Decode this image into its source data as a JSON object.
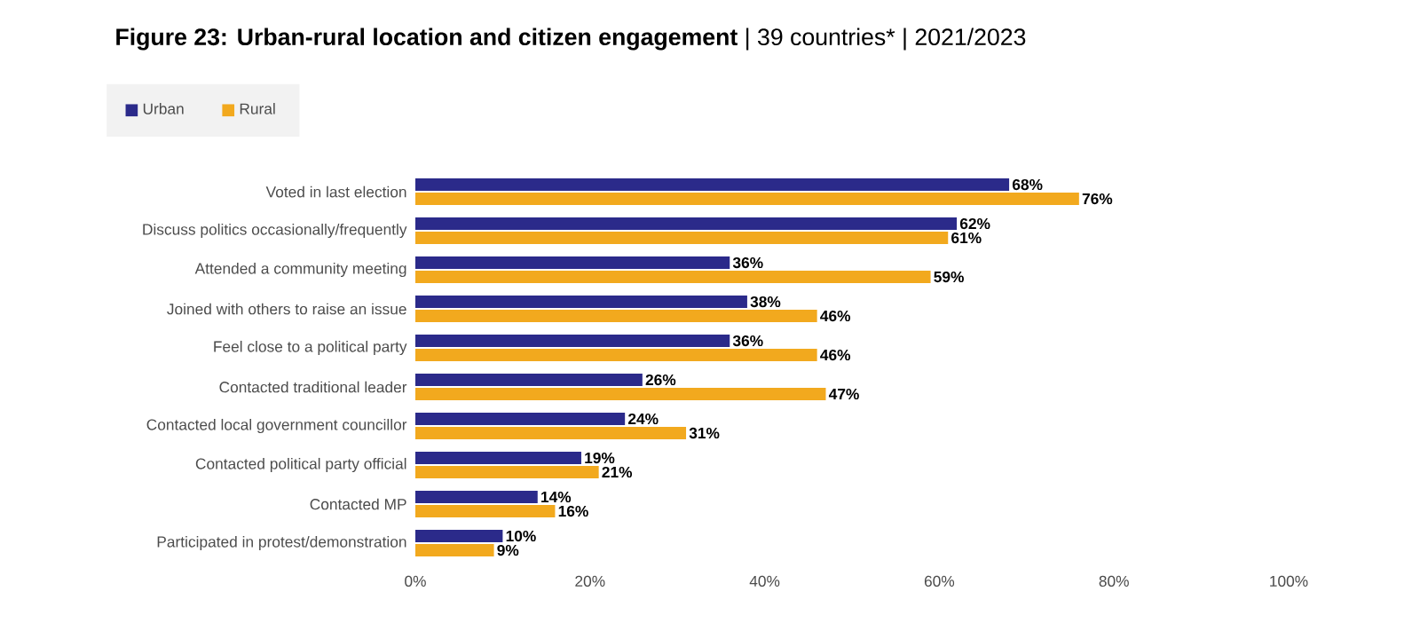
{
  "chart_data": {
    "type": "bar",
    "orientation": "horizontal",
    "title": "**Figure 23: Urban-rural location and citizen engagement** | 39 countries* | 2021/2023",
    "categories": [
      "Voted in last election",
      "Discuss politics occasionally/frequently",
      "Attended a community meeting",
      "Joined with others to raise an issue",
      "Feel close to a political party",
      "Contacted traditional leader",
      "Contacted local government councillor",
      "Contacted political party official",
      "Contacted MP",
      "Participated in protest/demonstration"
    ],
    "series": [
      {
        "name": "Urban",
        "color": "#2b2a8a",
        "values": [
          68,
          62,
          36,
          38,
          36,
          26,
          24,
          19,
          14,
          10
        ],
        "value_labels": [
          "68%",
          "62%",
          "36%",
          "38%",
          "36%",
          "26%",
          "24%",
          "19%",
          "14%",
          "10%"
        ]
      },
      {
        "name": "Rural",
        "color": "#f2a91e",
        "values": [
          76,
          61,
          59,
          46,
          46,
          47,
          31,
          21,
          16,
          9
        ],
        "value_labels": [
          "76%",
          "61%",
          "59%",
          "46%",
          "46%",
          "47%",
          "31%",
          "21%",
          "16%",
          "9%"
        ]
      }
    ],
    "xlim": [
      0,
      100
    ],
    "xticks": [
      {
        "value": 0,
        "label": "0%"
      },
      {
        "value": 20,
        "label": "20%"
      },
      {
        "value": 40,
        "label": "40%"
      },
      {
        "value": 60,
        "label": "60%"
      },
      {
        "value": 80,
        "label": "80%"
      },
      {
        "value": 100,
        "label": "100%"
      }
    ],
    "legend": "top left",
    "grid": false
  }
}
